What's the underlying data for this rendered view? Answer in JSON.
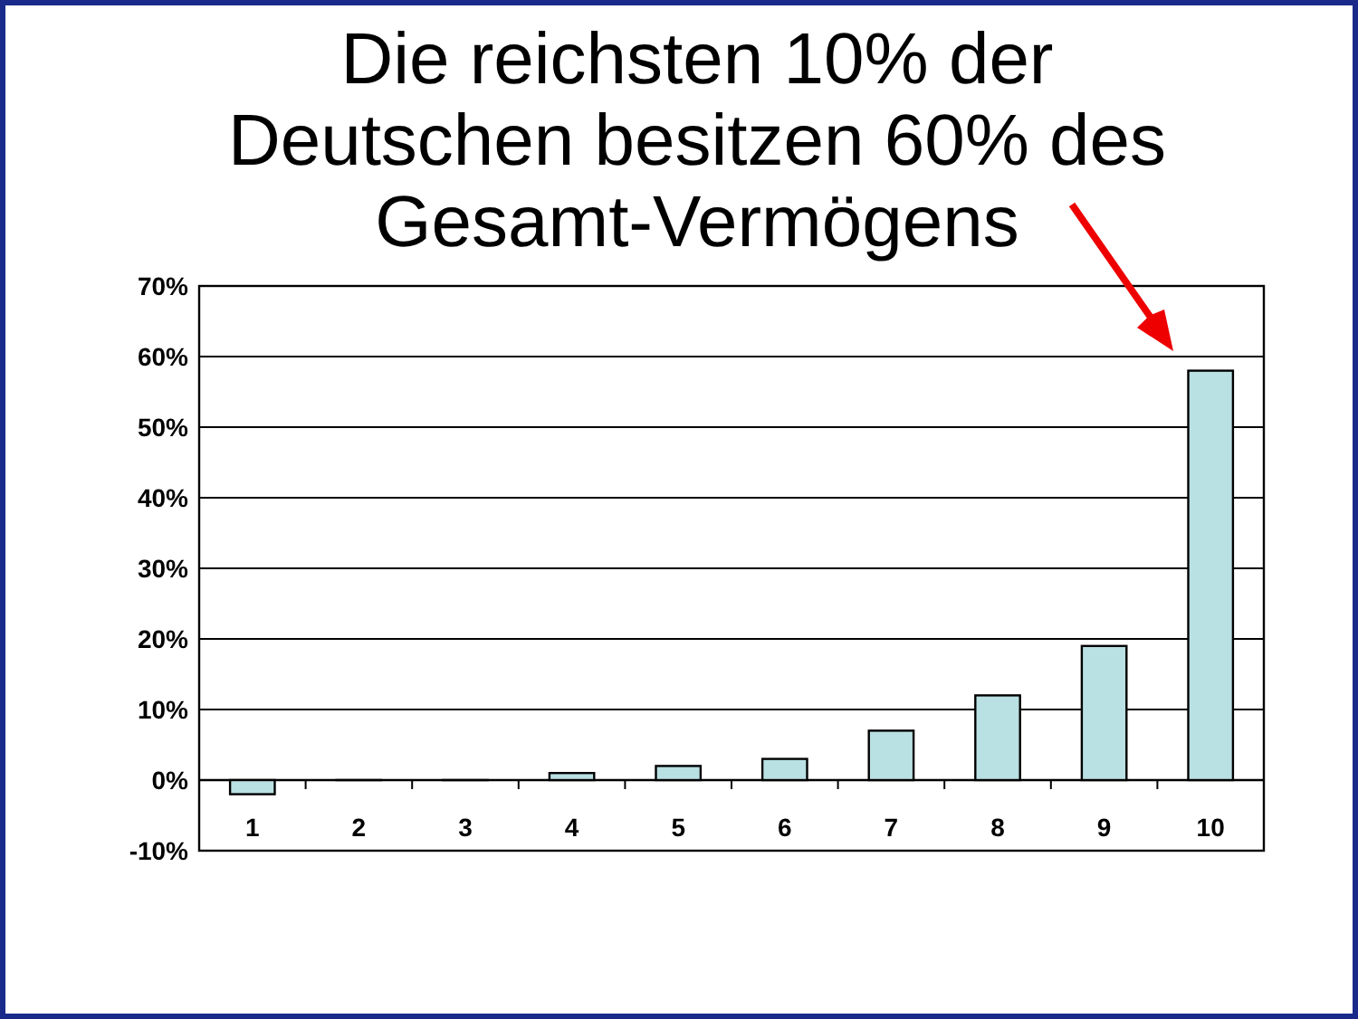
{
  "chart_data": {
    "type": "bar",
    "title": "Die reichsten 10% der\nDeutschen besitzen 60% des\nGesamt-Vermögens",
    "categories": [
      "1",
      "2",
      "3",
      "4",
      "5",
      "6",
      "7",
      "8",
      "9",
      "10"
    ],
    "values": [
      -2,
      0,
      0,
      1,
      2,
      3,
      7,
      12,
      19,
      58
    ],
    "color": "#b9e0e3",
    "ylim": [
      -10,
      70
    ],
    "yticks": [
      {
        "value": -10,
        "label": "-10%"
      },
      {
        "value": 0,
        "label": "0%"
      },
      {
        "value": 10,
        "label": "10%"
      },
      {
        "value": 20,
        "label": "20%"
      },
      {
        "value": 30,
        "label": "30%"
      },
      {
        "value": 40,
        "label": "40%"
      },
      {
        "value": 50,
        "label": "50%"
      },
      {
        "value": 60,
        "label": "60%"
      },
      {
        "value": 70,
        "label": "70%"
      }
    ],
    "grid": "y"
  }
}
